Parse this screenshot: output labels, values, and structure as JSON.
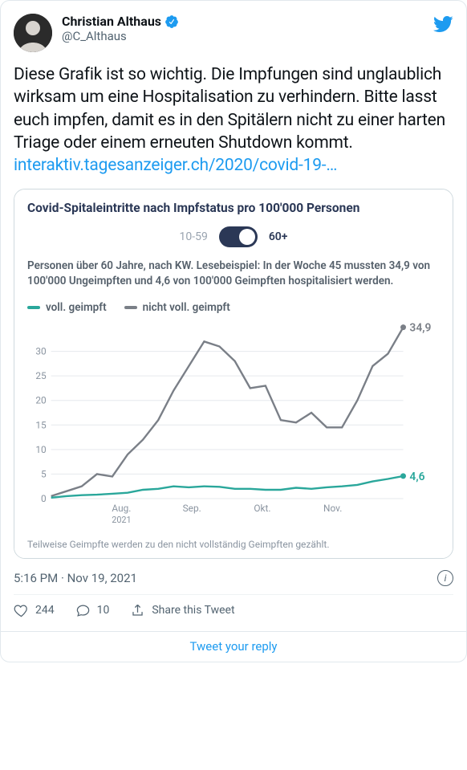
{
  "author": {
    "display_name": "Christian Althaus",
    "handle": "@C_Althaus"
  },
  "tweet": {
    "text": "Diese Grafik ist so wichtig. Die Impfungen sind unglaublich wirksam um eine Hospitalisation zu verhindern. Bitte lasst euch impfen, damit es in den Spitälern nicht zu einer harten Triage oder einem erneuten Shutdown kommt. ",
    "link_text": "interaktiv.tagesanzeiger.ch/2020/covid-19-…"
  },
  "embed": {
    "title": "Covid-Spitaleintritte nach Impfstatus pro 100'000 Personen",
    "toggle": {
      "left": "10-59",
      "right": "60+"
    },
    "explain": "Personen über 60 Jahre, nach KW. Lesebeispiel: In der Woche 45 mussten 34,9 von 100'000 Ungeimpften und 4,6 von 100'000 Geimpften hospitalisiert werden.",
    "legend": {
      "vaccinated": {
        "label": "voll. geimpft",
        "color": "#2aa79b"
      },
      "unvaccinated": {
        "label": "nicht voll. geimpft",
        "color": "#7a7f87"
      }
    },
    "chart": {
      "type": "line",
      "background_color": "#ffffff",
      "grid_color": "#e6e9ed",
      "ylim": [
        0,
        35
      ],
      "yticks": [
        0,
        5,
        10,
        15,
        20,
        25,
        30
      ],
      "x_labels": [
        "Aug.",
        "Sep.",
        "Okt.",
        "Nov."
      ],
      "x_sublabel": "2021",
      "series": {
        "unvaccinated": {
          "color": "#7a7f87",
          "end_label": "34,9",
          "values": [
            0.5,
            1.5,
            2.5,
            5.0,
            4.5,
            9.0,
            12.0,
            16.0,
            22.0,
            27.0,
            32.0,
            31.0,
            28.0,
            22.5,
            23.0,
            16.0,
            15.5,
            17.5,
            14.5,
            14.5,
            20.0,
            27.0,
            29.5,
            34.9
          ]
        },
        "vaccinated": {
          "color": "#2aa79b",
          "end_label": "4,6",
          "values": [
            0.2,
            0.5,
            0.7,
            0.8,
            1.0,
            1.2,
            1.8,
            2.0,
            2.5,
            2.3,
            2.5,
            2.4,
            2.0,
            2.0,
            1.8,
            1.8,
            2.2,
            2.0,
            2.3,
            2.5,
            2.8,
            3.5,
            4.0,
            4.6
          ]
        }
      },
      "title_fontsize": 15,
      "label_fontsize": 12,
      "line_width": 2.4
    },
    "footnote": "Teilweise Geimpfte werden zu den nicht vollständig Geimpften gezählt."
  },
  "meta": {
    "time": "5:16 PM",
    "date": "Nov 19, 2021"
  },
  "actions": {
    "likes": "244",
    "replies": "10",
    "share_label": "Share this Tweet"
  },
  "reply_cta": "Tweet your reply"
}
